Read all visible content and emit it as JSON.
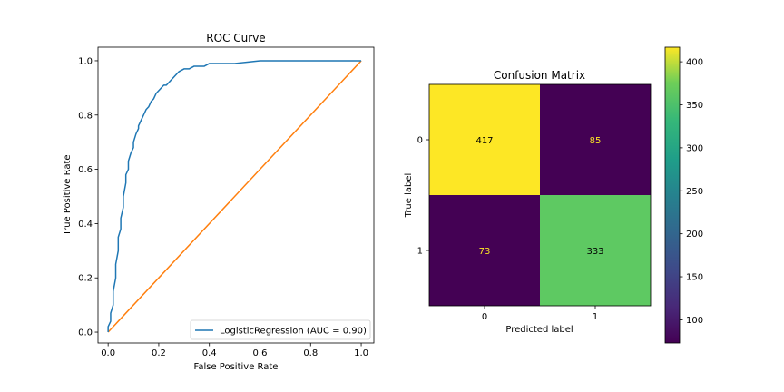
{
  "chart_data": [
    {
      "type": "line",
      "title": "ROC Curve",
      "xlabel": "False Positive Rate",
      "ylabel": "True Positive Rate",
      "xlim": [
        -0.04,
        1.05
      ],
      "ylim": [
        -0.04,
        1.05
      ],
      "xticks": [
        "0.0",
        "0.2",
        "0.4",
        "0.6",
        "0.8",
        "1.0"
      ],
      "yticks": [
        "0.0",
        "0.2",
        "0.4",
        "0.6",
        "0.8",
        "1.0"
      ],
      "legend_position": "lower-right",
      "series": [
        {
          "name": "LogisticRegression (AUC = 0.90)",
          "color": "#1f77b4",
          "x": [
            0.0,
            0.0,
            0.01,
            0.01,
            0.02,
            0.02,
            0.03,
            0.03,
            0.04,
            0.04,
            0.05,
            0.05,
            0.06,
            0.06,
            0.07,
            0.07,
            0.08,
            0.08,
            0.09,
            0.1,
            0.1,
            0.11,
            0.12,
            0.12,
            0.13,
            0.14,
            0.15,
            0.16,
            0.17,
            0.18,
            0.19,
            0.2,
            0.21,
            0.22,
            0.23,
            0.24,
            0.25,
            0.26,
            0.27,
            0.28,
            0.3,
            0.32,
            0.34,
            0.36,
            0.38,
            0.4,
            0.42,
            0.45,
            0.48,
            0.5,
            0.55,
            0.6,
            0.7,
            0.8,
            0.9,
            1.0
          ],
          "y": [
            0.0,
            0.02,
            0.04,
            0.07,
            0.1,
            0.15,
            0.2,
            0.25,
            0.3,
            0.35,
            0.38,
            0.42,
            0.46,
            0.5,
            0.55,
            0.58,
            0.6,
            0.63,
            0.66,
            0.68,
            0.7,
            0.73,
            0.75,
            0.76,
            0.78,
            0.8,
            0.82,
            0.83,
            0.85,
            0.86,
            0.88,
            0.89,
            0.9,
            0.91,
            0.91,
            0.92,
            0.93,
            0.94,
            0.95,
            0.96,
            0.97,
            0.97,
            0.98,
            0.98,
            0.98,
            0.99,
            0.99,
            0.99,
            0.99,
            0.99,
            0.995,
            1.0,
            1.0,
            1.0,
            1.0,
            1.0
          ]
        },
        {
          "name": "",
          "color": "#ff7f0e",
          "x": [
            0.0,
            1.0
          ],
          "y": [
            0.0,
            1.0
          ]
        }
      ]
    },
    {
      "type": "heatmap",
      "title": "Confusion Matrix",
      "xlabel": "Predicted label",
      "ylabel": "True label",
      "xticks": [
        "0",
        "1"
      ],
      "yticks": [
        "0",
        "1"
      ],
      "values": [
        [
          417,
          85
        ],
        [
          73,
          333
        ]
      ],
      "colorbar": {
        "ticks": [
          "100",
          "150",
          "200",
          "250",
          "300",
          "350",
          "400"
        ],
        "min": 73,
        "max": 417
      },
      "colors": {
        "cell_00": "#fde725",
        "cell_01": "#440154",
        "cell_10": "#440154",
        "cell_11": "#5ec962",
        "text_on_dark": "#fde725",
        "text_on_light": "#000000"
      }
    }
  ]
}
